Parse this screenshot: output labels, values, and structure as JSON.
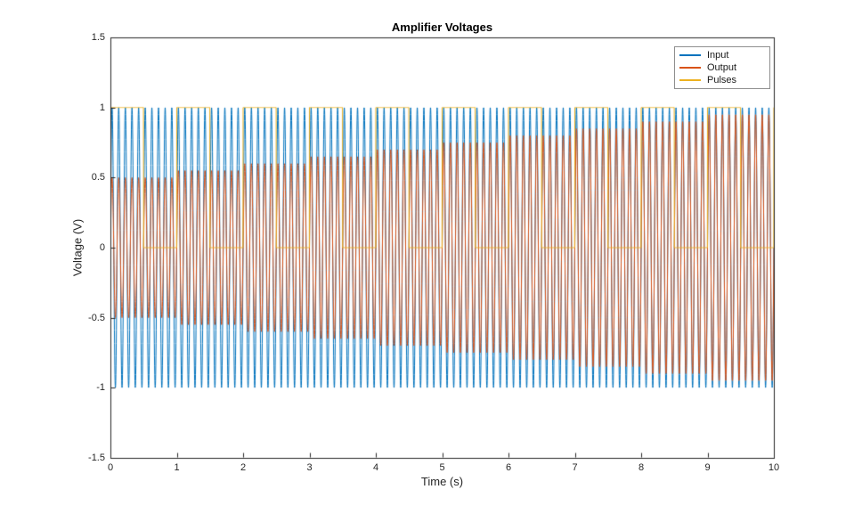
{
  "figure": {
    "background": "#ffffff"
  },
  "axes": {
    "color": "#262626",
    "tick_color": "#262626",
    "tick_label_color": "#262626",
    "box": true
  },
  "chart_data": {
    "type": "line",
    "title": "Amplifier Voltages",
    "xlabel": "Time (s)",
    "ylabel": "Voltage (V)",
    "xlim": [
      0,
      10
    ],
    "ylim": [
      -1.5,
      1.5
    ],
    "x_ticks": [
      0,
      1,
      2,
      3,
      4,
      5,
      6,
      7,
      8,
      9,
      10
    ],
    "x_tick_labels": [
      "0",
      "1",
      "2",
      "3",
      "4",
      "5",
      "6",
      "7",
      "8",
      "9",
      "10"
    ],
    "y_ticks": [
      -1.5,
      -1,
      -0.5,
      0,
      0.5,
      1,
      1.5
    ],
    "y_tick_labels": [
      "-1.5",
      "-1",
      "-0.5",
      "0",
      "0.5",
      "1",
      "1.5"
    ],
    "grid": false,
    "legend": {
      "position": "northeast",
      "entries": [
        "Input",
        "Output",
        "Pulses"
      ]
    },
    "sample_dt_s": 0.002,
    "duration_s": 10,
    "series": [
      {
        "name": "Input",
        "color": "#0072BD",
        "signal": "sine",
        "amplitude": 1,
        "frequency_hz": 10,
        "phase": 0
      },
      {
        "name": "Output",
        "color": "#D95319",
        "signal": "sine-stepped-gain",
        "frequency_hz": 10,
        "phase": 0,
        "amplitude_start": 0.5,
        "amplitude_step_per_second": 0.05,
        "amplitude_max": 1
      },
      {
        "name": "Pulses",
        "color": "#EDB120",
        "signal": "square",
        "period_s": 1,
        "duty": 0.5,
        "high": 1,
        "low": 0
      }
    ]
  }
}
